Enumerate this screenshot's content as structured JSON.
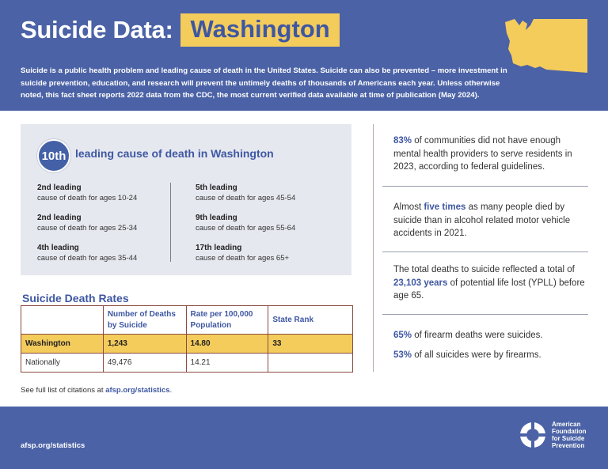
{
  "header": {
    "title_prefix": "Suicide Data:",
    "state": "Washington",
    "intro": "Suicide is a public health problem and leading cause of death in the United States. Suicide can also be prevented – more investment in suicide prevention, education, and research will prevent the untimely deaths of thousands of Americans each year. Unless otherwise noted, this fact sheet reports 2022 data from the CDC, the most current verified data available at time of publication (May 2024)."
  },
  "leading": {
    "rank": "10th",
    "heading": "leading cause of death in Washington",
    "items": [
      {
        "title": "2nd leading",
        "sub": "cause of death for ages 10-24"
      },
      {
        "title": "2nd leading",
        "sub": "cause of death for ages 25-34"
      },
      {
        "title": "4th leading",
        "sub": "cause of death for ages 35-44"
      },
      {
        "title": "5th leading",
        "sub": "cause of death for ages 45-54"
      },
      {
        "title": "9th leading",
        "sub": "cause of death for ages 55-64"
      },
      {
        "title": "17th leading",
        "sub": "cause of death for ages 65+"
      }
    ]
  },
  "rates": {
    "title": "Suicide Death Rates",
    "columns": [
      "",
      "Number of Deaths by Suicide",
      "Rate per 100,000 Population",
      "State Rank"
    ],
    "rows": [
      {
        "name": "Washington",
        "deaths": "1,243",
        "rate": "14.80",
        "rank": "33"
      },
      {
        "name": "Nationally",
        "deaths": "49,476",
        "rate": "14.21",
        "rank": ""
      }
    ]
  },
  "citation": {
    "prefix": "See full list of citations at ",
    "link": "afsp.org/statistics",
    "suffix": "."
  },
  "stats": {
    "s1": {
      "bold": "83%",
      "text": " of communities did not have enough mental health providers to serve residents in 2023, according to federal guidelines."
    },
    "s2": {
      "pre": "Almost ",
      "bold": "five times",
      "text": " as many people died by suicide than in alcohol related motor vehicle accidents in 2021."
    },
    "s3": {
      "pre": "The total deaths to suicide reflected a total of ",
      "bold": "23,103 years",
      "text": " of potential life lost (YPLL) before age 65."
    },
    "s4": {
      "bold": "65%",
      "text": " of firearm deaths were suicides."
    },
    "s5": {
      "bold": "53%",
      "text": " of all suicides were by firearms."
    }
  },
  "footer": {
    "url": "afsp.org/statistics",
    "logo_lines": [
      "American",
      "Foundation",
      "for Suicide",
      "Prevention"
    ]
  },
  "colors": {
    "brand_blue": "#4b62a6",
    "accent_yellow": "#f4cc5c",
    "box_gray": "#e6e8ef"
  },
  "icons": {
    "map": "washington-state-map-icon",
    "logo": "afsp-lifesaver-logo-icon"
  }
}
